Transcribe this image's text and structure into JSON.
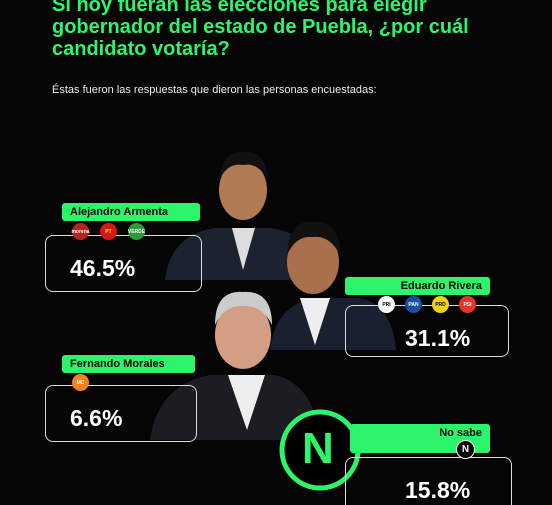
{
  "header": {
    "title": "Si hoy fueran las elecciones para elegir gobernador del estado de Puebla, ¿por cuál candidato votaría?",
    "subtitle": "Éstas fueron las respuestas que dieron las personas encuestadas:"
  },
  "candidates": [
    {
      "name": "Alejandro Armenta",
      "result": "46.5%",
      "parties": [
        "morena",
        "PT",
        "VERDE"
      ]
    },
    {
      "name": "Eduardo Rivera",
      "result": "31.1%",
      "parties": [
        "PRI",
        "PAN",
        "PRD",
        "PSI"
      ]
    },
    {
      "name": "Fernando Morales",
      "result": "6.6%",
      "parties": [
        "MC"
      ]
    },
    {
      "name": "No sabe",
      "result": "15.8%",
      "parties": [
        "N"
      ]
    }
  ]
}
